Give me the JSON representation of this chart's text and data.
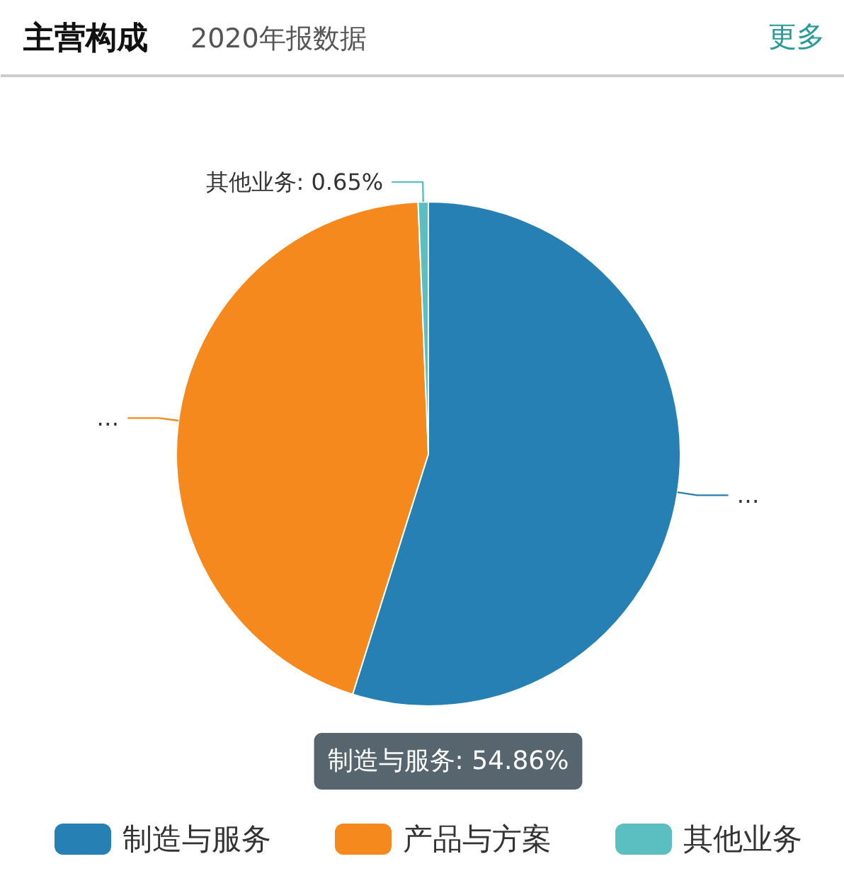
{
  "chart_data": {
    "type": "pie",
    "title": "主营构成",
    "subtitle": "2020年报数据",
    "categories": [
      "制造与服务",
      "产品与方案",
      "其他业务"
    ],
    "values": [
      54.86,
      44.49,
      0.65
    ],
    "colors": [
      "#2680b3",
      "#f5891d",
      "#5bbfc2"
    ],
    "value_labels": [
      "…",
      "…",
      "其他业务: 0.65%"
    ],
    "annotations": [
      "更多",
      "制造与服务: 54.86%"
    ],
    "legend": "bottom"
  }
}
